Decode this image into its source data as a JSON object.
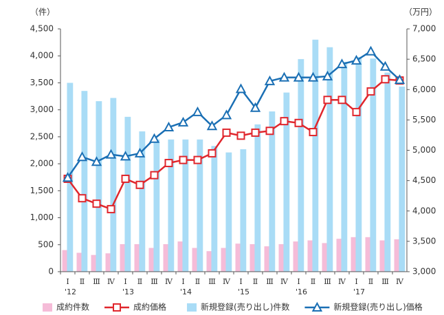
{
  "chart_data": {
    "type": "bar-line",
    "y_unit_label": "（件）",
    "y2_unit_label": "（万円）",
    "categories": [
      "Ⅰ",
      "Ⅱ",
      "Ⅲ",
      "Ⅳ",
      "Ⅰ",
      "Ⅱ",
      "Ⅲ",
      "Ⅳ",
      "Ⅰ",
      "Ⅱ",
      "Ⅲ",
      "Ⅳ",
      "Ⅰ",
      "Ⅱ",
      "Ⅲ",
      "Ⅳ",
      "Ⅰ",
      "Ⅱ",
      "Ⅲ",
      "Ⅳ",
      "Ⅰ",
      "Ⅱ",
      "Ⅲ",
      "Ⅳ"
    ],
    "year_labels": [
      "'12",
      null,
      null,
      null,
      "'13",
      null,
      null,
      null,
      "'14",
      null,
      null,
      null,
      "'15",
      null,
      null,
      null,
      "'16",
      null,
      null,
      null,
      "'17",
      null,
      null,
      null
    ],
    "ylim": [
      0,
      4500
    ],
    "yticks": [
      0,
      500,
      {
        "value": 1000,
        "label": "1,000"
      },
      {
        "value": 1500,
        "label": "1,500"
      },
      {
        "value": 2000,
        "label": "2,000"
      },
      {
        "value": 2500,
        "label": "2,500"
      },
      {
        "value": 3000,
        "label": "3,000"
      },
      {
        "value": 3500,
        "label": "3,500"
      },
      {
        "value": 4000,
        "label": "4,000"
      },
      {
        "value": 4500,
        "label": "4,500"
      }
    ],
    "y2lim": [
      3000,
      7000
    ],
    "y2ticks": [
      {
        "value": 3000,
        "label": "3,000"
      },
      {
        "value": 3500,
        "label": "3,500"
      },
      {
        "value": 4000,
        "label": "4,000"
      },
      {
        "value": 4500,
        "label": "4,500"
      },
      {
        "value": 5000,
        "label": "5,000"
      },
      {
        "value": 5500,
        "label": "5,500"
      },
      {
        "value": 6000,
        "label": "6,000"
      },
      {
        "value": 6500,
        "label": "6,500"
      },
      {
        "value": 7000,
        "label": "7,000"
      }
    ],
    "series": [
      {
        "name": "成約件数",
        "kind": "bar",
        "color": "#f5bcd8",
        "values": [
          400,
          350,
          310,
          340,
          510,
          510,
          440,
          510,
          560,
          440,
          380,
          440,
          520,
          510,
          470,
          510,
          560,
          580,
          530,
          610,
          640,
          640,
          580,
          600
        ]
      },
      {
        "name": "成約価格",
        "kind": "line",
        "marker": "square",
        "axis": "y2",
        "color": "#e0262c",
        "values": [
          4530,
          4210,
          4120,
          4030,
          4530,
          4430,
          4590,
          4790,
          4840,
          4840,
          4950,
          5290,
          5240,
          5290,
          5320,
          5480,
          5450,
          5300,
          5830,
          5830,
          5630,
          5970,
          6170,
          6150
        ]
      },
      {
        "name": "新規登録(売り出し)件数",
        "kind": "bar",
        "color": "#a9dcf6",
        "values": [
          3500,
          3350,
          3160,
          3220,
          2870,
          2600,
          2450,
          2450,
          2450,
          2450,
          2330,
          2210,
          2270,
          2730,
          2970,
          3320,
          3940,
          4300,
          4160,
          3890,
          3980,
          3950,
          3690,
          3430
        ]
      },
      {
        "name": "新規登録(売り出し)価格",
        "kind": "line",
        "marker": "triangle",
        "axis": "y2",
        "color": "#1a6fb4",
        "values": [
          4550,
          4890,
          4810,
          4930,
          4900,
          4950,
          5190,
          5380,
          5460,
          5630,
          5400,
          5580,
          6010,
          5700,
          6140,
          6200,
          6200,
          6200,
          6220,
          6420,
          6480,
          6630,
          6380,
          6160
        ]
      }
    ]
  }
}
